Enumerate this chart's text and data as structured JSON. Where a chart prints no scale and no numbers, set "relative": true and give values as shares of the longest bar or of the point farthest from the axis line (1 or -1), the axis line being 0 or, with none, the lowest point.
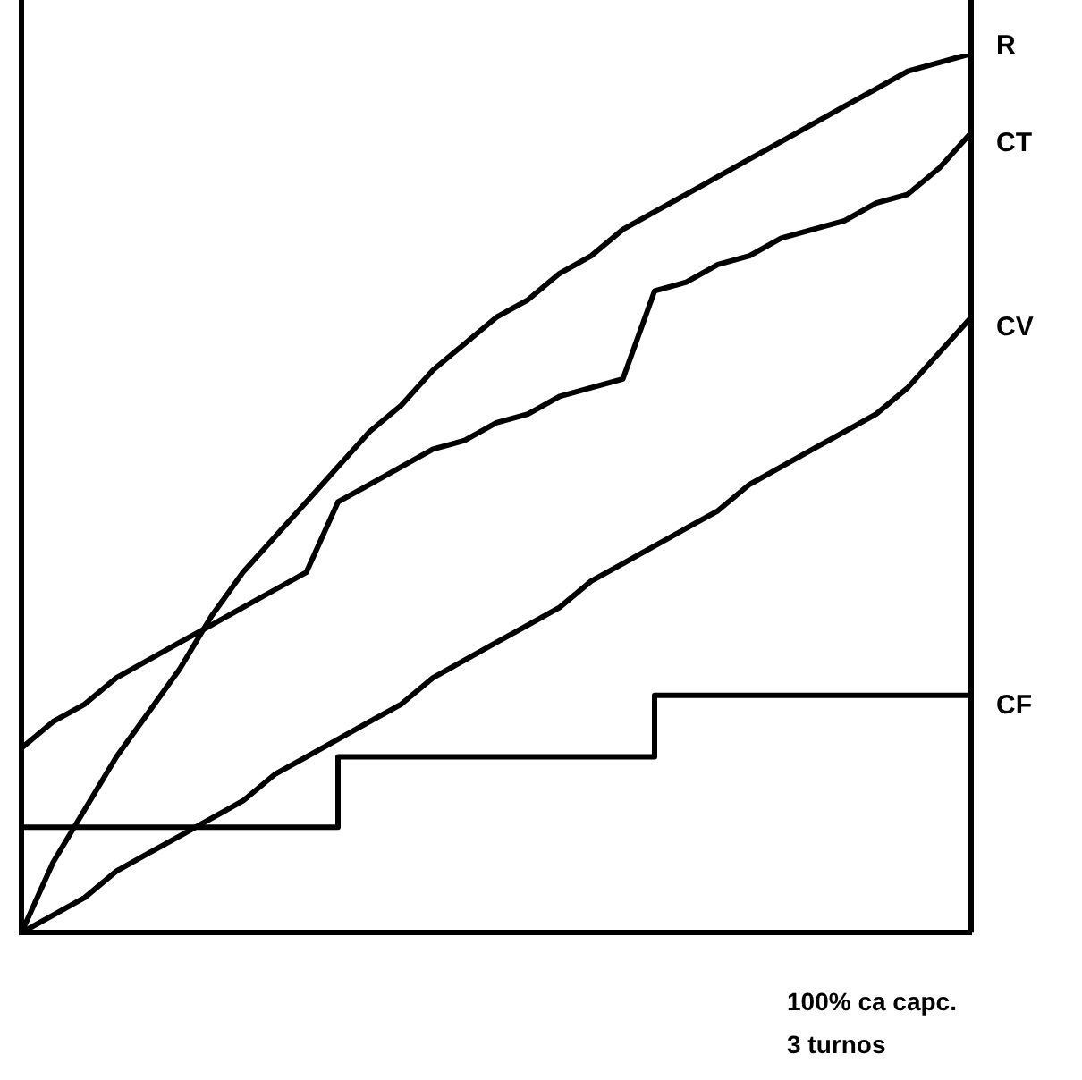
{
  "chart_data": {
    "type": "line",
    "relative": true,
    "xlabel": "100% ca capc. 3 turnos",
    "grid": false,
    "legend": false,
    "marker": "none",
    "line_style": "solid",
    "categories": [
      null,
      null,
      null,
      null,
      null,
      null,
      null,
      null,
      null,
      null,
      null,
      null,
      null,
      null,
      null,
      null,
      null,
      null,
      null,
      null,
      null,
      null,
      null,
      null,
      null,
      null,
      null,
      null,
      null,
      null,
      null
    ],
    "series": [
      {
        "name": "R",
        "color": "#000000",
        "values": [
          0,
          0.08,
          0.14,
          0.2,
          0.25,
          0.3,
          0.36,
          0.41,
          0.45,
          0.49,
          0.53,
          0.57,
          0.6,
          0.64,
          0.67,
          0.7,
          0.72,
          0.75,
          0.77,
          0.8,
          0.82,
          0.84,
          0.86,
          0.88,
          0.9,
          0.92,
          0.94,
          0.96,
          0.98,
          0.99,
          1
        ]
      },
      {
        "name": "CT",
        "color": "#000000",
        "values": [
          0.21,
          0.24,
          0.26,
          0.29,
          0.31,
          0.33,
          0.35,
          0.37,
          0.39,
          0.41,
          0.49,
          0.51,
          0.53,
          0.55,
          0.56,
          0.58,
          0.59,
          0.61,
          0.62,
          0.63,
          0.73,
          0.74,
          0.76,
          0.77,
          0.79,
          0.8,
          0.81,
          0.83,
          0.84,
          0.87,
          0.91
        ]
      },
      {
        "name": "CV",
        "color": "#000000",
        "values": [
          0,
          0.02,
          0.04,
          0.07,
          0.09,
          0.11,
          0.13,
          0.15,
          0.18,
          0.2,
          0.22,
          0.24,
          0.26,
          0.29,
          0.31,
          0.33,
          0.35,
          0.37,
          0.4,
          0.42,
          0.44,
          0.46,
          0.48,
          0.51,
          0.53,
          0.55,
          0.57,
          0.59,
          0.62,
          0.66,
          0.7
        ]
      },
      {
        "name": "CF",
        "type": "step",
        "color": "#000000",
        "values": [
          0.12,
          0.12,
          0.12,
          0.12,
          0.12,
          0.12,
          0.12,
          0.12,
          0.12,
          0.12,
          0.2,
          0.2,
          0.2,
          0.2,
          0.2,
          0.2,
          0.2,
          0.2,
          0.2,
          0.2,
          0.27,
          0.27,
          0.27,
          0.27,
          0.27,
          0.27,
          0.27,
          0.27,
          0.27,
          0.27,
          0.27
        ]
      }
    ]
  }
}
